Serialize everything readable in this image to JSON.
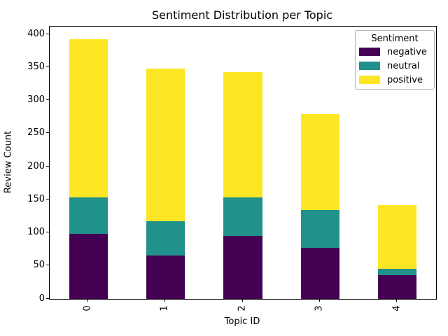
{
  "title": "Sentiment Distribution per Topic",
  "chart_data": {
    "type": "bar",
    "stacked": true,
    "title": "Sentiment Distribution per Topic",
    "xlabel": "Topic ID",
    "ylabel": "Review Count",
    "categories": [
      "0",
      "1",
      "2",
      "3",
      "4"
    ],
    "series": [
      {
        "name": "negative",
        "color": "#440154",
        "values": [
          99,
          66,
          95,
          77,
          36
        ]
      },
      {
        "name": "neutral",
        "color": "#21918c",
        "values": [
          55,
          52,
          59,
          58,
          10
        ]
      },
      {
        "name": "positive",
        "color": "#fde725",
        "values": [
          239,
          230,
          189,
          145,
          96
        ]
      }
    ],
    "totals": [
      393,
      348,
      343,
      280,
      142
    ],
    "ylim": [
      0,
      412
    ],
    "yticks": [
      0,
      50,
      100,
      150,
      200,
      250,
      300,
      350,
      400
    ],
    "bar_width_fraction": 0.5,
    "grid": false,
    "legend": {
      "title": "Sentiment",
      "position": "upper right",
      "entries": [
        "negative",
        "neutral",
        "positive"
      ]
    }
  }
}
